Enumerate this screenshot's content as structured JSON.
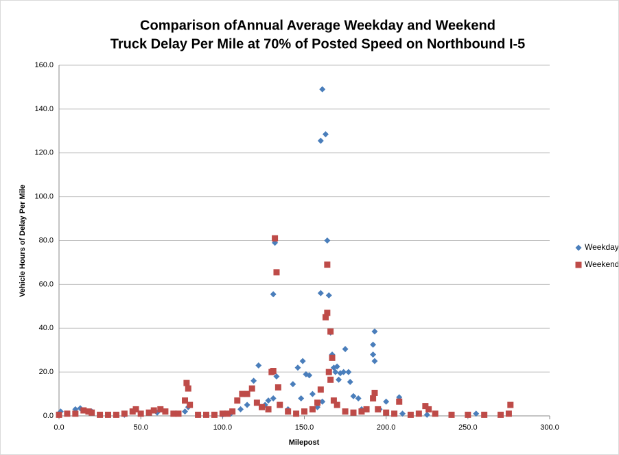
{
  "chart_data": {
    "type": "scatter",
    "title": [
      "Comparison ofAnnual Average Weekday and Weekend",
      "Truck Delay Per Mile at 70% of Posted Speed on Northbound I-5"
    ],
    "x_label": "Milepost",
    "y_label": "Vehicle Hours of Delay Per Mile",
    "xlim": [
      0,
      300
    ],
    "ylim": [
      0,
      160
    ],
    "xticks": [
      {
        "value": 0,
        "label": "0.0"
      },
      {
        "value": 50,
        "label": "50.0"
      },
      {
        "value": 100,
        "label": "100.0"
      },
      {
        "value": 150,
        "label": "150.0"
      },
      {
        "value": 200,
        "label": "200.0"
      },
      {
        "value": 250,
        "label": "250.0"
      },
      {
        "value": 300,
        "label": "300.0"
      }
    ],
    "yticks": [
      {
        "value": 0,
        "label": "0.0"
      },
      {
        "value": 20,
        "label": "20.0"
      },
      {
        "value": 40,
        "label": "40.0"
      },
      {
        "value": 60,
        "label": "60.0"
      },
      {
        "value": 80,
        "label": "80.0"
      },
      {
        "value": 100,
        "label": "100.0"
      },
      {
        "value": 120,
        "label": "120.0"
      },
      {
        "value": 140,
        "label": "140.0"
      },
      {
        "value": 160,
        "label": "160.0"
      }
    ],
    "grid": true,
    "legend": "right",
    "series": [
      {
        "name": "Weekday",
        "color": "#4a7ebb",
        "marker": "diamond",
        "x": [
          161,
          160,
          163,
          164,
          132,
          131,
          160,
          165,
          193,
          166,
          192,
          192,
          193,
          175,
          149,
          146,
          122,
          151,
          153,
          133,
          169,
          172,
          174,
          177,
          171,
          178,
          143,
          119,
          128,
          131,
          148,
          155,
          161,
          167,
          168,
          170,
          180,
          183,
          200,
          208,
          115,
          111,
          126,
          140,
          158,
          185,
          196,
          10,
          13,
          5,
          1,
          20,
          30,
          40,
          50,
          60,
          70,
          77,
          79,
          90,
          100,
          105,
          210,
          220,
          225,
          240,
          250,
          255,
          260,
          270,
          275
        ],
        "values": [
          149,
          125.5,
          128.5,
          80,
          79,
          55.5,
          56,
          55,
          38.5,
          38,
          32.5,
          28,
          25,
          30.5,
          25,
          22,
          23,
          19,
          18.5,
          18,
          20,
          19.5,
          20,
          20,
          16.5,
          15.5,
          14.5,
          16,
          7,
          8,
          8,
          10,
          6.5,
          28,
          22,
          22.5,
          9,
          8,
          6.5,
          8.5,
          5,
          3,
          5,
          3,
          4,
          3,
          3,
          3,
          3.5,
          1,
          2,
          2,
          0.5,
          0.5,
          1,
          1.5,
          1,
          2,
          4,
          0.5,
          0.5,
          1,
          1,
          1,
          0.5,
          0.5,
          0.5,
          1,
          0.5,
          0.5,
          1
        ]
      },
      {
        "name": "Weekend",
        "color": "#be4b48",
        "marker": "square",
        "x": [
          132,
          133,
          164,
          163,
          164,
          166,
          167,
          166,
          165,
          131,
          130,
          78,
          79,
          77,
          80,
          112,
          115,
          118,
          109,
          121,
          124,
          128,
          135,
          134,
          193,
          192,
          208,
          224,
          168,
          170,
          160,
          158,
          155,
          150,
          140,
          145,
          175,
          180,
          185,
          188,
          195,
          200,
          205,
          215,
          220,
          226,
          230,
          240,
          250,
          260,
          270,
          276,
          275,
          0,
          5,
          10,
          15,
          18,
          20,
          25,
          30,
          35,
          40,
          45,
          47,
          50,
          55,
          58,
          62,
          65,
          70,
          73,
          85,
          90,
          95,
          100,
          103,
          106
        ],
        "values": [
          81,
          65.5,
          69,
          45,
          47,
          38.5,
          26.5,
          16.5,
          20,
          20.5,
          20,
          15,
          12.5,
          7,
          5,
          10,
          10,
          12.5,
          7,
          6,
          4,
          3,
          5,
          13,
          10.5,
          8,
          6.5,
          4.5,
          7,
          5,
          12,
          6,
          3,
          2,
          2,
          1,
          2,
          1.5,
          2,
          3,
          3,
          1.5,
          1,
          0.5,
          1,
          3,
          1,
          0.5,
          0.5,
          0.5,
          0.5,
          5,
          1,
          0.5,
          1,
          1,
          2.5,
          2,
          1.5,
          0.5,
          0.5,
          0.5,
          1,
          2,
          3,
          1,
          1.5,
          2.5,
          3,
          2,
          1,
          1,
          0.5,
          0.5,
          0.5,
          1,
          1,
          2
        ]
      }
    ]
  }
}
